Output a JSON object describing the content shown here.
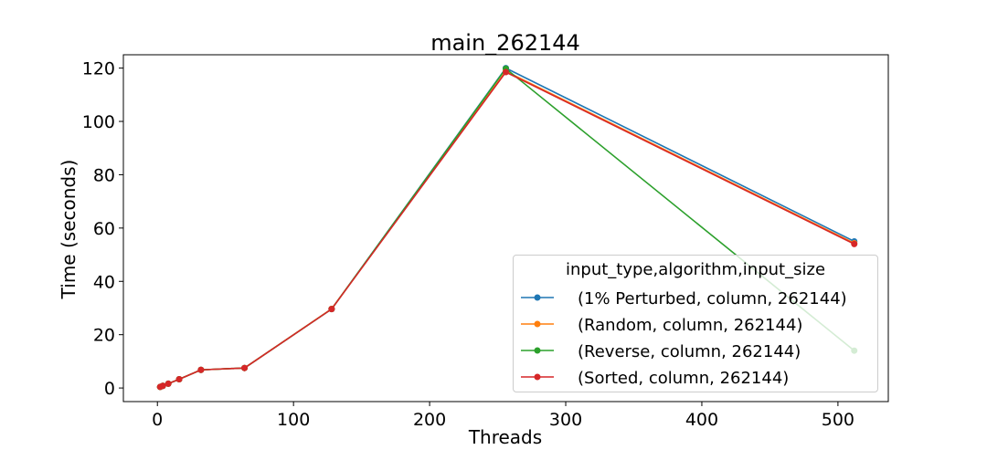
{
  "chart_data": {
    "type": "line",
    "title": "main_262144",
    "xlabel": "Threads",
    "ylabel": "Time (seconds)",
    "xlim": [
      -25,
      537
    ],
    "ylim": [
      -5.1,
      125
    ],
    "xticks": [
      0,
      100,
      200,
      300,
      400,
      500
    ],
    "yticks": [
      0,
      20,
      40,
      60,
      80,
      100,
      120
    ],
    "grid": false,
    "legend_title": "input_type,algorithm,input_size",
    "legend_position": "lower right",
    "x": [
      2,
      4,
      8,
      16,
      32,
      64,
      128,
      256,
      512
    ],
    "series": [
      {
        "name": "(1% Perturbed, column, 262144)",
        "color": "#1f77b4",
        "values": [
          0.4,
          0.8,
          1.6,
          3.3,
          6.8,
          7.5,
          29.6,
          120.0,
          55.0
        ]
      },
      {
        "name": "(Random, column, 262144)",
        "color": "#ff7f0e",
        "values": [
          0.4,
          0.8,
          1.6,
          3.3,
          6.8,
          7.5,
          29.7,
          118.8,
          54.3
        ]
      },
      {
        "name": "(Reverse, column, 262144)",
        "color": "#2ca02c",
        "values": [
          0.4,
          0.8,
          1.6,
          3.3,
          6.8,
          7.5,
          29.6,
          119.8,
          14.0
        ]
      },
      {
        "name": "(Sorted, column, 262144)",
        "color": "#d62728",
        "values": [
          0.4,
          0.8,
          1.6,
          3.3,
          6.8,
          7.5,
          29.6,
          118.5,
          54.0
        ]
      }
    ]
  }
}
